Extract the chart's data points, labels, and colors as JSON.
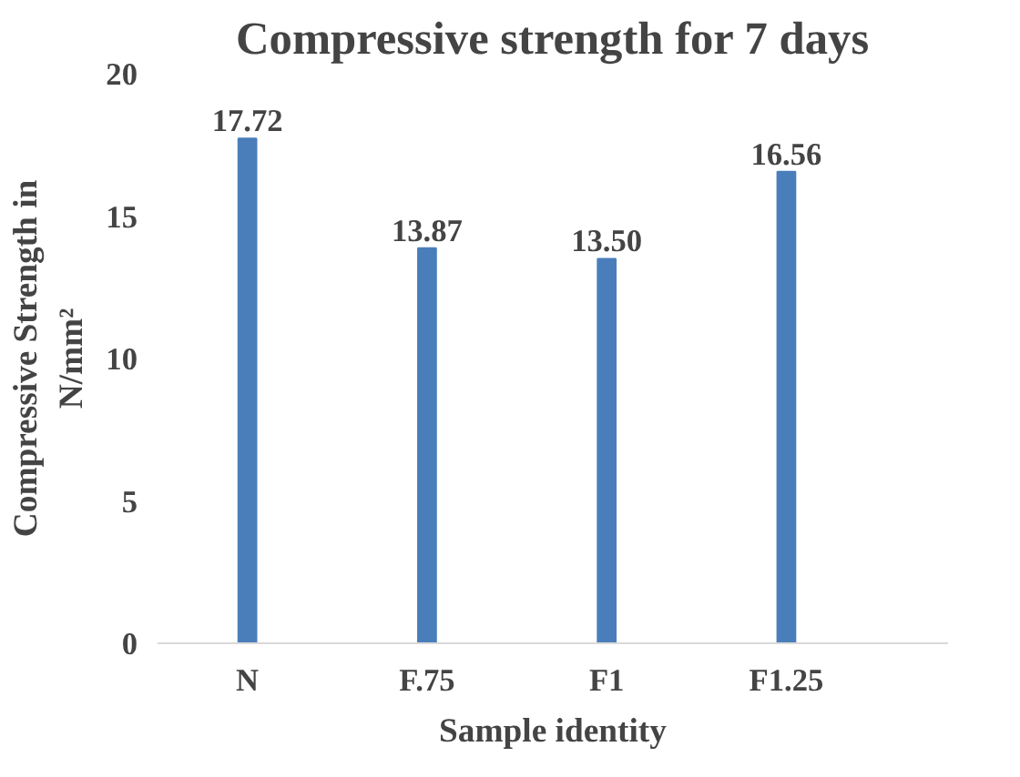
{
  "chart_data": {
    "type": "bar",
    "title": "Compressive strength for 7 days",
    "xlabel": "Sample identity",
    "ylabel": "Compressive Strength in\nN/mm²",
    "categories": [
      "N",
      "F.75",
      "F1",
      "F1.25"
    ],
    "values": [
      17.72,
      13.87,
      13.5,
      16.56
    ],
    "value_labels": [
      "17.72",
      "13.87",
      "13.50",
      "16.56"
    ],
    "color": "#4a7ebb",
    "ylim": [
      0,
      20
    ],
    "yticks": [
      0,
      5,
      10,
      15,
      20
    ],
    "grid": false
  }
}
